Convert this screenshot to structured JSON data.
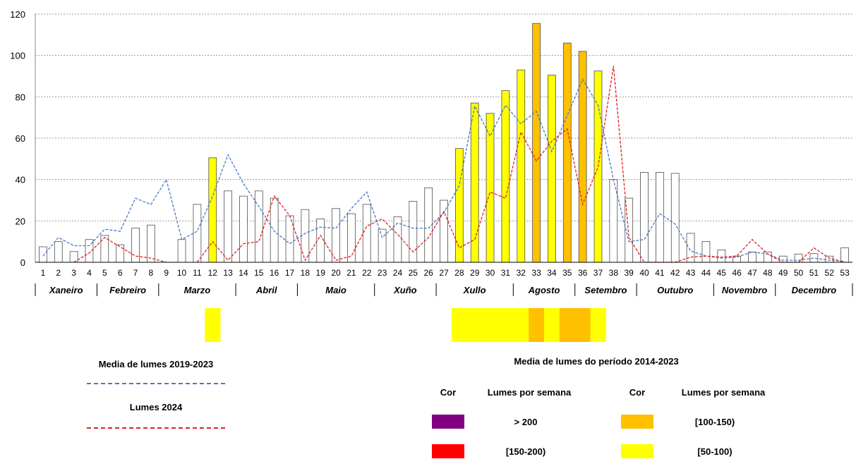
{
  "chart_data": {
    "type": "bar",
    "ylim": [
      0,
      120
    ],
    "yticks": [
      0,
      20,
      40,
      60,
      80,
      100,
      120
    ],
    "grid": "horizontal dotted",
    "weeks": [
      "1",
      "2",
      "3",
      "4",
      "5",
      "6",
      "7",
      "8",
      "9",
      "10",
      "11",
      "12",
      "13",
      "14",
      "15",
      "16",
      "17",
      "18",
      "19",
      "20",
      "21",
      "22",
      "23",
      "24",
      "25",
      "26",
      "27",
      "28",
      "29",
      "30",
      "31",
      "32",
      "33",
      "34",
      "35",
      "36",
      "37",
      "38",
      "39",
      "40",
      "41",
      "42",
      "43",
      "44",
      "45",
      "46",
      "47",
      "48",
      "49",
      "50",
      "51",
      "52",
      "53"
    ],
    "months": [
      {
        "label": "Xaneiro",
        "start": 1,
        "end": 4
      },
      {
        "label": "Febreiro",
        "start": 5,
        "end": 8
      },
      {
        "label": "Marzo",
        "start": 9,
        "end": 13
      },
      {
        "label": "Abril",
        "start": 14,
        "end": 17
      },
      {
        "label": "Maio",
        "start": 18,
        "end": 22
      },
      {
        "label": "Xuño",
        "start": 23,
        "end": 26
      },
      {
        "label": "Xullo",
        "start": 27,
        "end": 31
      },
      {
        "label": "Agosto",
        "start": 32,
        "end": 35
      },
      {
        "label": "Setembro",
        "start": 36,
        "end": 39
      },
      {
        "label": "Outubro",
        "start": 40,
        "end": 44
      },
      {
        "label": "Novembro",
        "start": 45,
        "end": 48
      },
      {
        "label": "Decembro",
        "start": 49,
        "end": 53
      }
    ],
    "series": [
      {
        "name": "Media de lumes do período 2014-2023",
        "kind": "bar",
        "values": [
          7.5,
          10,
          5.2,
          11,
          13,
          8.5,
          16.5,
          18,
          0,
          11,
          28,
          50.5,
          34.5,
          32,
          34.5,
          31,
          22.5,
          25.5,
          21,
          26,
          23.5,
          28,
          16,
          22,
          29.5,
          36,
          30,
          55,
          77,
          72,
          83,
          93,
          115.5,
          90.5,
          106,
          102,
          92.5,
          40,
          31,
          43.5,
          43.5,
          43,
          14,
          10,
          6,
          3,
          5,
          5,
          3,
          4,
          4.2,
          3,
          7
        ]
      },
      {
        "name": "Media de lumes 2019-2023",
        "kind": "line",
        "color": "#4a7ac0",
        "values": [
          3,
          12,
          8,
          8,
          16,
          15,
          31,
          28,
          40,
          11,
          15,
          32,
          52,
          38,
          27,
          15,
          9,
          14,
          17,
          16.5,
          26,
          34,
          12,
          19,
          16.5,
          16.5,
          24,
          37,
          75.5,
          61,
          76,
          67,
          73,
          53.5,
          71,
          88.5,
          76,
          40,
          10,
          11,
          23.5,
          18.5,
          5.5,
          3,
          2,
          2.5,
          5,
          4,
          1,
          1,
          2,
          1,
          0.5
        ]
      },
      {
        "name": "Lumes 2024",
        "kind": "line",
        "color": "#e52020",
        "values": [
          null,
          null,
          0,
          4.5,
          12,
          7.5,
          3,
          2,
          0,
          null,
          0,
          10,
          1,
          9,
          10,
          32,
          22.5,
          1,
          13,
          1,
          3,
          17.5,
          21,
          13.5,
          5,
          12,
          24.5,
          7,
          11,
          34,
          31,
          63,
          49,
          58.5,
          64.5,
          28,
          46,
          95,
          12,
          0,
          0,
          0,
          2.5,
          3,
          2.5,
          3,
          11,
          4,
          0,
          0,
          7,
          2,
          0
        ]
      }
    ],
    "legend_scale": [
      {
        "color": "#800080",
        "label": "> 200"
      },
      {
        "color": "#ff0000",
        "label": "[150-200)"
      },
      {
        "color": "#ffc000",
        "label": "[100-150)"
      },
      {
        "color": "#ffff00",
        "label": "[50-100)"
      }
    ]
  },
  "legend": {
    "avg_title": "Media de lumes 2019-2023",
    "y2024_title": "Lumes 2024",
    "period_title": "Media de lumes do período 2014-2023",
    "col_cor": "Cor",
    "col_lumes": "Lumes por semana",
    "r_gt200": "> 200",
    "r_150_200": "[150-200)",
    "r_100_150": "[100-150)",
    "r_50_100": "[50-100)"
  },
  "colors": {
    "purple": "#800080",
    "red": "#ff0000",
    "orange": "#ffc000",
    "yellow": "#ffff00",
    "blue_line": "#4a7ac0",
    "red_line": "#e52020"
  }
}
